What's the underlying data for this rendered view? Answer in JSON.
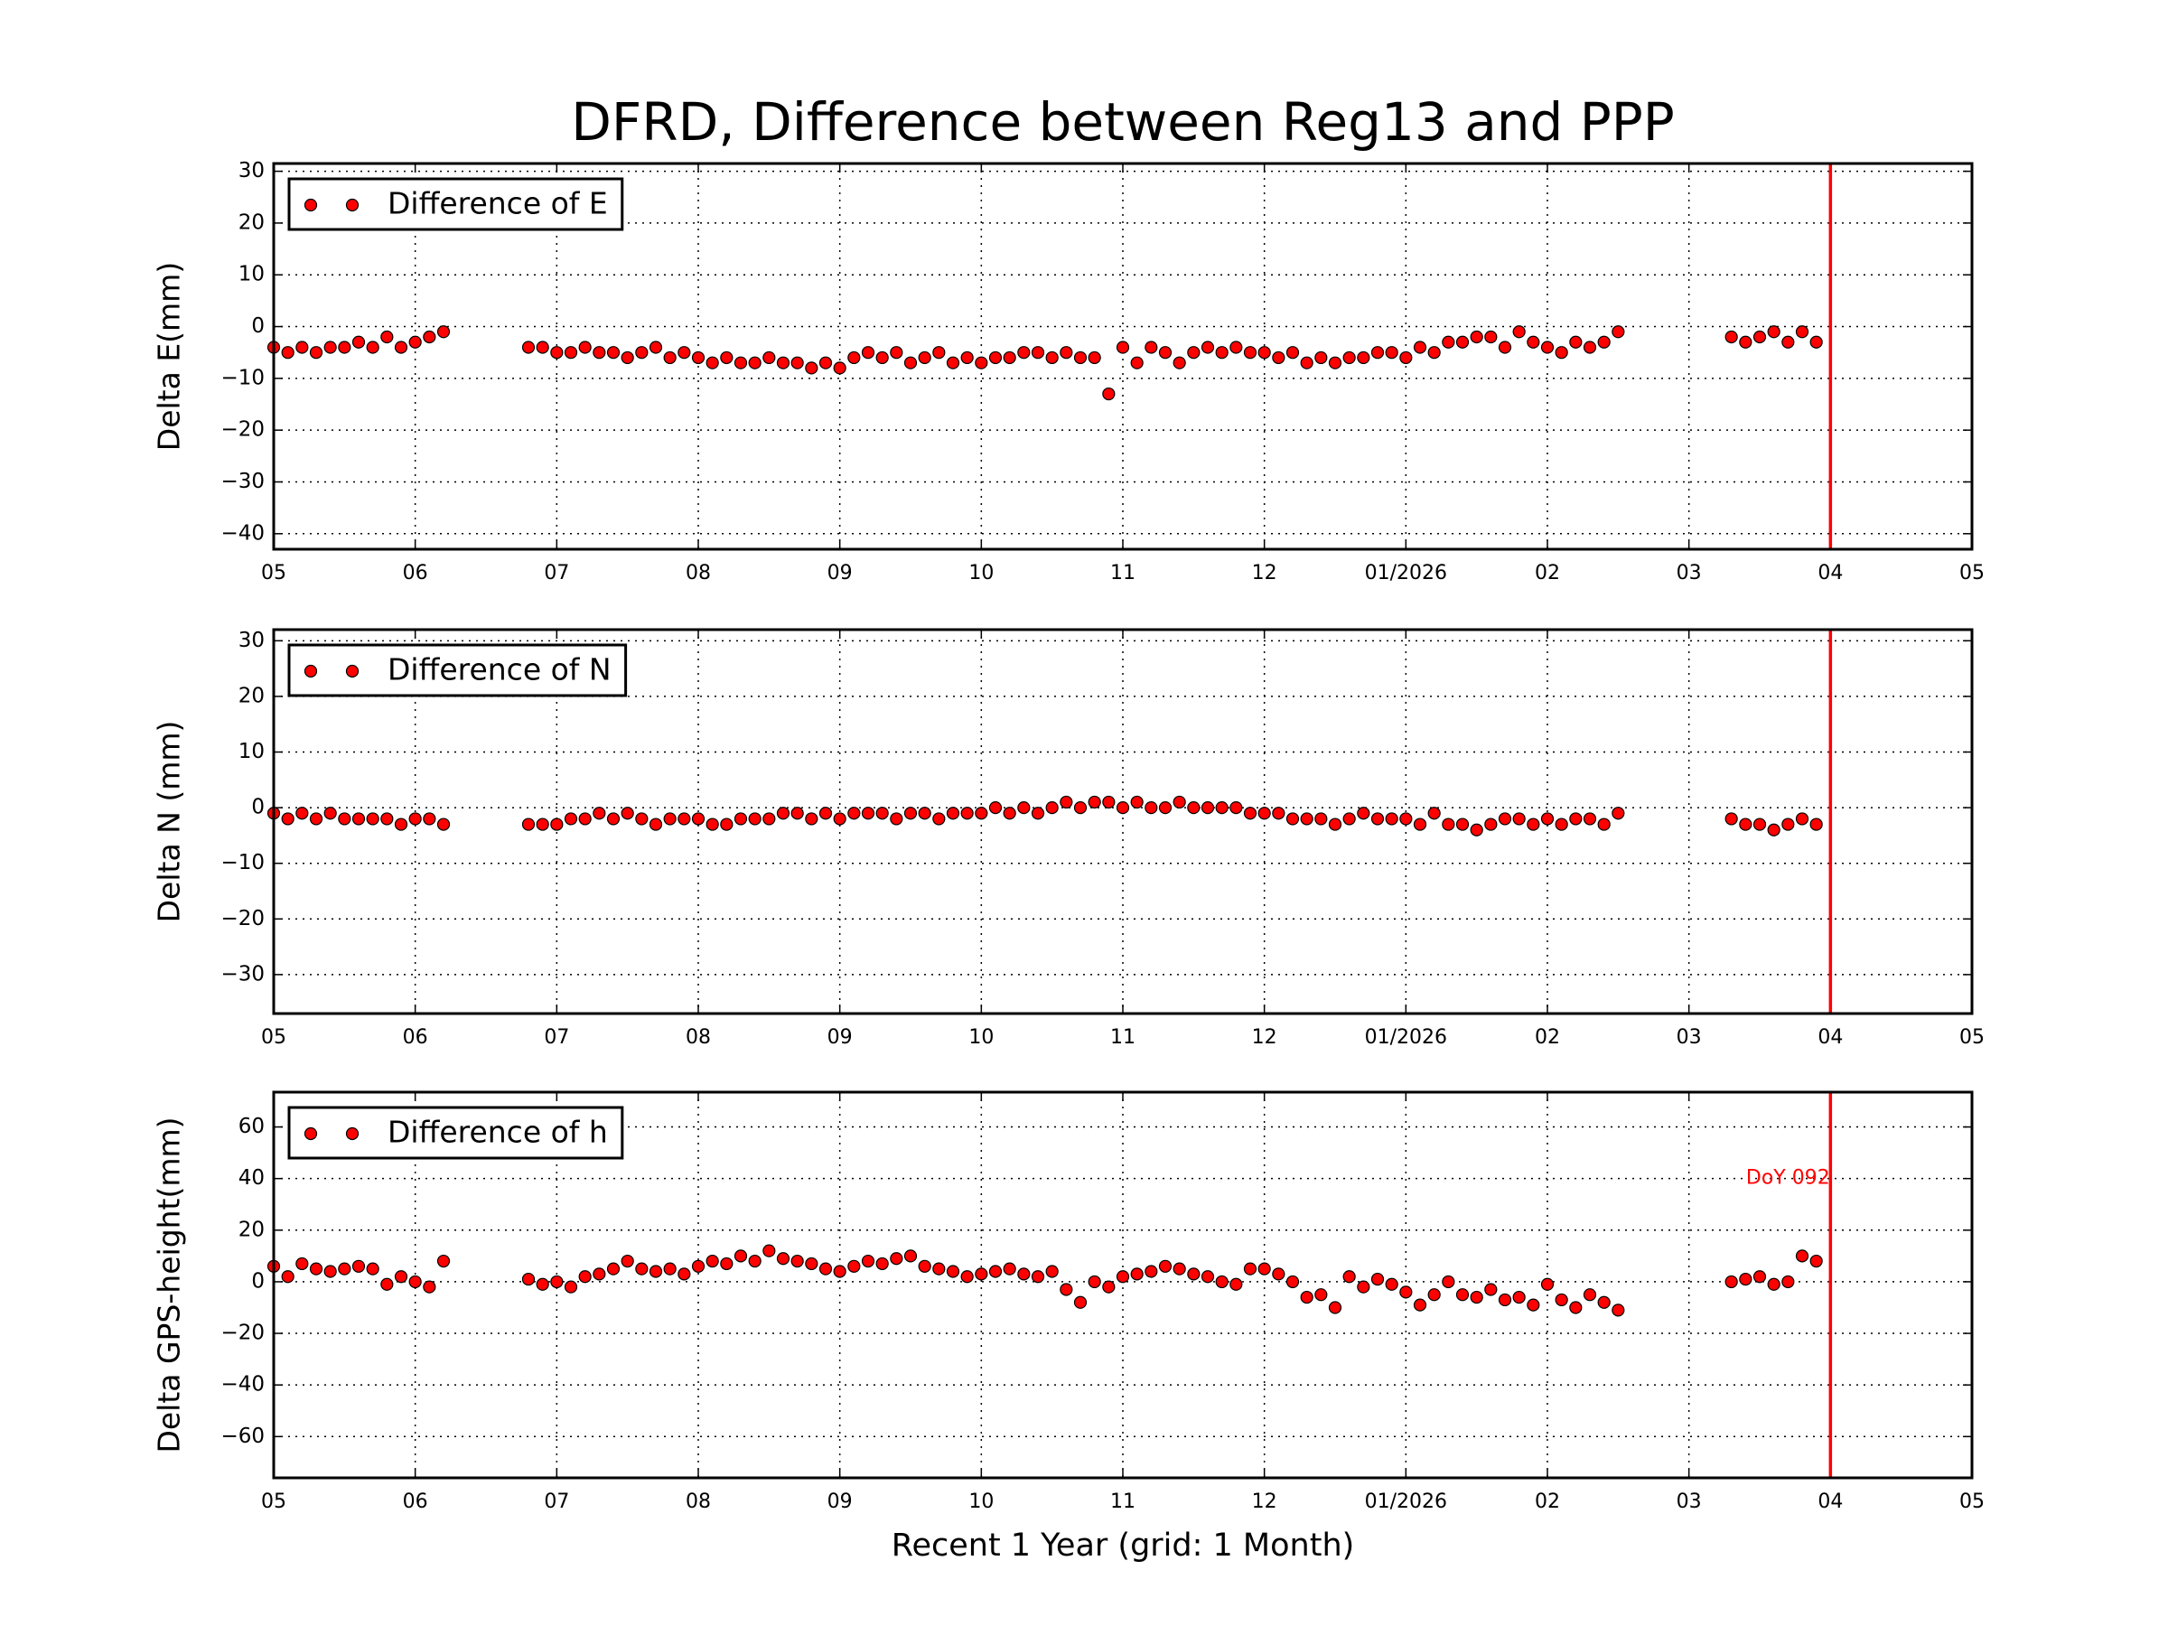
{
  "chart_data": [
    {
      "type": "scatter",
      "title": "DFRD, Difference between Reg13 and PPP",
      "ylabel": "Delta E(mm)",
      "x": [
        0.0,
        0.1,
        0.2,
        0.3,
        0.4,
        0.5,
        0.6,
        0.7,
        0.8,
        0.9,
        1.0,
        1.1,
        1.2,
        1.8,
        1.9,
        2.0,
        2.1,
        2.2,
        2.3,
        2.4,
        2.5,
        2.6,
        2.7,
        2.8,
        2.9,
        3.0,
        3.1,
        3.2,
        3.3,
        3.4,
        3.5,
        3.6,
        3.7,
        3.8,
        3.9,
        4.0,
        4.1,
        4.2,
        4.3,
        4.4,
        4.5,
        4.6,
        4.7,
        4.8,
        4.9,
        5.0,
        5.1,
        5.2,
        5.3,
        5.4,
        5.5,
        5.6,
        5.7,
        5.8,
        5.9,
        6.0,
        6.1,
        6.2,
        6.3,
        6.4,
        6.5,
        6.6,
        6.7,
        6.8,
        6.9,
        7.0,
        7.1,
        7.2,
        7.3,
        7.4,
        7.5,
        7.6,
        7.7,
        7.8,
        7.9,
        8.0,
        8.1,
        8.2,
        8.3,
        8.4,
        8.5,
        8.6,
        8.7,
        8.8,
        8.9,
        9.0,
        9.1,
        9.2,
        9.3,
        9.4,
        9.5,
        10.3,
        10.4,
        10.5,
        10.6,
        10.7,
        10.8,
        10.9
      ],
      "series": [
        {
          "name": "Difference of E",
          "color": "#ff0000",
          "values": [
            -4,
            -5,
            -4,
            -5,
            -4,
            -4,
            -3,
            -4,
            -2,
            -4,
            -3,
            -2,
            -1,
            -4,
            -4,
            -5,
            -5,
            -4,
            -5,
            -5,
            -6,
            -5,
            -4,
            -6,
            -5,
            -6,
            -7,
            -6,
            -7,
            -7,
            -6,
            -7,
            -7,
            -8,
            -7,
            -8,
            -6,
            -5,
            -6,
            -5,
            -7,
            -6,
            -5,
            -7,
            -6,
            -7,
            -6,
            -6,
            -5,
            -5,
            -6,
            -5,
            -6,
            -6,
            -13,
            -4,
            -7,
            -4,
            -5,
            -7,
            -5,
            -4,
            -5,
            -4,
            -5,
            -5,
            -6,
            -5,
            -7,
            -6,
            -7,
            -6,
            -6,
            -5,
            -5,
            -6,
            -4,
            -5,
            -3,
            -3,
            -2,
            -2,
            -4,
            -1,
            -3,
            -4,
            -5,
            -3,
            -4,
            -3,
            -1,
            -2,
            -3,
            -2,
            -1,
            -3,
            -1,
            -3
          ]
        }
      ],
      "xlim": [
        0,
        12
      ],
      "xticks": [
        {
          "value": 0,
          "label": "05"
        },
        {
          "value": 1,
          "label": "06"
        },
        {
          "value": 2,
          "label": "07"
        },
        {
          "value": 3,
          "label": "08"
        },
        {
          "value": 4,
          "label": "09"
        },
        {
          "value": 5,
          "label": "10"
        },
        {
          "value": 6,
          "label": "11"
        },
        {
          "value": 7,
          "label": "12"
        },
        {
          "value": 8,
          "label": "01/2026"
        },
        {
          "value": 9,
          "label": "02"
        },
        {
          "value": 10,
          "label": "03"
        },
        {
          "value": 11,
          "label": "04"
        },
        {
          "value": 12,
          "label": "05"
        }
      ],
      "ylim": [
        -43,
        31.5
      ],
      "yticks": [
        {
          "value": -40,
          "label": "−40"
        },
        {
          "value": -30,
          "label": "−30"
        },
        {
          "value": -20,
          "label": "−20"
        },
        {
          "value": -10,
          "label": "−10"
        },
        0,
        10,
        20,
        30
      ],
      "grid": true,
      "legend": "upper left",
      "vline": {
        "value": 11,
        "color": "#ff0000"
      }
    },
    {
      "type": "scatter",
      "ylabel": "Delta N (mm)",
      "x": [
        0.0,
        0.1,
        0.2,
        0.3,
        0.4,
        0.5,
        0.6,
        0.7,
        0.8,
        0.9,
        1.0,
        1.1,
        1.2,
        1.8,
        1.9,
        2.0,
        2.1,
        2.2,
        2.3,
        2.4,
        2.5,
        2.6,
        2.7,
        2.8,
        2.9,
        3.0,
        3.1,
        3.2,
        3.3,
        3.4,
        3.5,
        3.6,
        3.7,
        3.8,
        3.9,
        4.0,
        4.1,
        4.2,
        4.3,
        4.4,
        4.5,
        4.6,
        4.7,
        4.8,
        4.9,
        5.0,
        5.1,
        5.2,
        5.3,
        5.4,
        5.5,
        5.6,
        5.7,
        5.8,
        5.9,
        6.0,
        6.1,
        6.2,
        6.3,
        6.4,
        6.5,
        6.6,
        6.7,
        6.8,
        6.9,
        7.0,
        7.1,
        7.2,
        7.3,
        7.4,
        7.5,
        7.6,
        7.7,
        7.8,
        7.9,
        8.0,
        8.1,
        8.2,
        8.3,
        8.4,
        8.5,
        8.6,
        8.7,
        8.8,
        8.9,
        9.0,
        9.1,
        9.2,
        9.3,
        9.4,
        9.5,
        10.3,
        10.4,
        10.5,
        10.6,
        10.7,
        10.8,
        10.9
      ],
      "series": [
        {
          "name": "Difference of N",
          "color": "#ff0000",
          "values": [
            -1,
            -2,
            -1,
            -2,
            -1,
            -2,
            -2,
            -2,
            -2,
            -3,
            -2,
            -2,
            -3,
            -3,
            -3,
            -3,
            -2,
            -2,
            -1,
            -2,
            -1,
            -2,
            -3,
            -2,
            -2,
            -2,
            -3,
            -3,
            -2,
            -2,
            -2,
            -1,
            -1,
            -2,
            -1,
            -2,
            -1,
            -1,
            -1,
            -2,
            -1,
            -1,
            -2,
            -1,
            -1,
            -1,
            0,
            -1,
            0,
            -1,
            0,
            1,
            0,
            1,
            1,
            0,
            1,
            0,
            0,
            1,
            0,
            0,
            0,
            0,
            -1,
            -1,
            -1,
            -2,
            -2,
            -2,
            -3,
            -2,
            -1,
            -2,
            -2,
            -2,
            -3,
            -1,
            -3,
            -3,
            -4,
            -3,
            -2,
            -2,
            -3,
            -2,
            -3,
            -2,
            -2,
            -3,
            -1,
            -2,
            -3,
            -3,
            -4,
            -3,
            -2,
            -3
          ]
        }
      ],
      "xlim": [
        0,
        12
      ],
      "xticks": [
        {
          "value": 0,
          "label": "05"
        },
        {
          "value": 1,
          "label": "06"
        },
        {
          "value": 2,
          "label": "07"
        },
        {
          "value": 3,
          "label": "08"
        },
        {
          "value": 4,
          "label": "09"
        },
        {
          "value": 5,
          "label": "10"
        },
        {
          "value": 6,
          "label": "11"
        },
        {
          "value": 7,
          "label": "12"
        },
        {
          "value": 8,
          "label": "01/2026"
        },
        {
          "value": 9,
          "label": "02"
        },
        {
          "value": 10,
          "label": "03"
        },
        {
          "value": 11,
          "label": "04"
        },
        {
          "value": 12,
          "label": "05"
        }
      ],
      "ylim": [
        -37,
        32
      ],
      "yticks": [
        {
          "value": -30,
          "label": "−30"
        },
        {
          "value": -20,
          "label": "−20"
        },
        {
          "value": -10,
          "label": "−10"
        },
        0,
        10,
        20,
        30
      ],
      "grid": true,
      "legend": "upper left",
      "vline": {
        "value": 11,
        "color": "#ff0000"
      }
    },
    {
      "type": "scatter",
      "ylabel": "Delta GPS-height(mm)",
      "xlabel": "Recent 1 Year (grid: 1 Month)",
      "x": [
        0.0,
        0.1,
        0.2,
        0.3,
        0.4,
        0.5,
        0.6,
        0.7,
        0.8,
        0.9,
        1.0,
        1.1,
        1.2,
        1.8,
        1.9,
        2.0,
        2.1,
        2.2,
        2.3,
        2.4,
        2.5,
        2.6,
        2.7,
        2.8,
        2.9,
        3.0,
        3.1,
        3.2,
        3.3,
        3.4,
        3.5,
        3.6,
        3.7,
        3.8,
        3.9,
        4.0,
        4.1,
        4.2,
        4.3,
        4.4,
        4.5,
        4.6,
        4.7,
        4.8,
        4.9,
        5.0,
        5.1,
        5.2,
        5.3,
        5.4,
        5.5,
        5.6,
        5.7,
        5.8,
        5.9,
        6.0,
        6.1,
        6.2,
        6.3,
        6.4,
        6.5,
        6.6,
        6.7,
        6.8,
        6.9,
        7.0,
        7.1,
        7.2,
        7.3,
        7.4,
        7.5,
        7.6,
        7.7,
        7.8,
        7.9,
        8.0,
        8.1,
        8.2,
        8.3,
        8.4,
        8.5,
        8.6,
        8.7,
        8.8,
        8.9,
        9.0,
        9.1,
        9.2,
        9.3,
        9.4,
        9.5,
        10.3,
        10.4,
        10.5,
        10.6,
        10.7,
        10.8,
        10.9
      ],
      "series": [
        {
          "name": "Difference of h",
          "color": "#ff0000",
          "values": [
            6,
            2,
            7,
            5,
            4,
            5,
            6,
            5,
            -1,
            2,
            0,
            -2,
            8,
            1,
            -1,
            0,
            -2,
            2,
            3,
            5,
            8,
            5,
            4,
            5,
            3,
            6,
            8,
            7,
            10,
            8,
            12,
            9,
            8,
            7,
            5,
            4,
            6,
            8,
            7,
            9,
            10,
            6,
            5,
            4,
            2,
            3,
            4,
            5,
            3,
            2,
            4,
            -3,
            -8,
            0,
            -2,
            2,
            3,
            4,
            6,
            5,
            3,
            2,
            0,
            -1,
            5,
            5,
            3,
            0,
            -6,
            -5,
            -10,
            2,
            -2,
            1,
            -1,
            -4,
            -9,
            -5,
            0,
            -5,
            -6,
            -3,
            -7,
            -6,
            -9,
            -1,
            -7,
            -10,
            -5,
            -8,
            -11,
            0,
            1,
            2,
            -1,
            0,
            10,
            8
          ]
        }
      ],
      "xlim": [
        0,
        12
      ],
      "xticks": [
        {
          "value": 0,
          "label": "05"
        },
        {
          "value": 1,
          "label": "06"
        },
        {
          "value": 2,
          "label": "07"
        },
        {
          "value": 3,
          "label": "08"
        },
        {
          "value": 4,
          "label": "09"
        },
        {
          "value": 5,
          "label": "10"
        },
        {
          "value": 6,
          "label": "11"
        },
        {
          "value": 7,
          "label": "12"
        },
        {
          "value": 8,
          "label": "01/2026"
        },
        {
          "value": 9,
          "label": "02"
        },
        {
          "value": 10,
          "label": "03"
        },
        {
          "value": 11,
          "label": "04"
        },
        {
          "value": 12,
          "label": "05"
        }
      ],
      "ylim": [
        -76,
        73.5
      ],
      "yticks": [
        {
          "value": -60,
          "label": "−60"
        },
        {
          "value": -40,
          "label": "−40"
        },
        {
          "value": -20,
          "label": "−20"
        },
        0,
        20,
        40,
        60
      ],
      "grid": true,
      "legend": "upper left",
      "vline": {
        "value": 11,
        "color": "#ff0000"
      },
      "annotation": {
        "text": "DoY 092",
        "x": 10.7,
        "y": 40,
        "color": "#ff0000"
      }
    }
  ]
}
